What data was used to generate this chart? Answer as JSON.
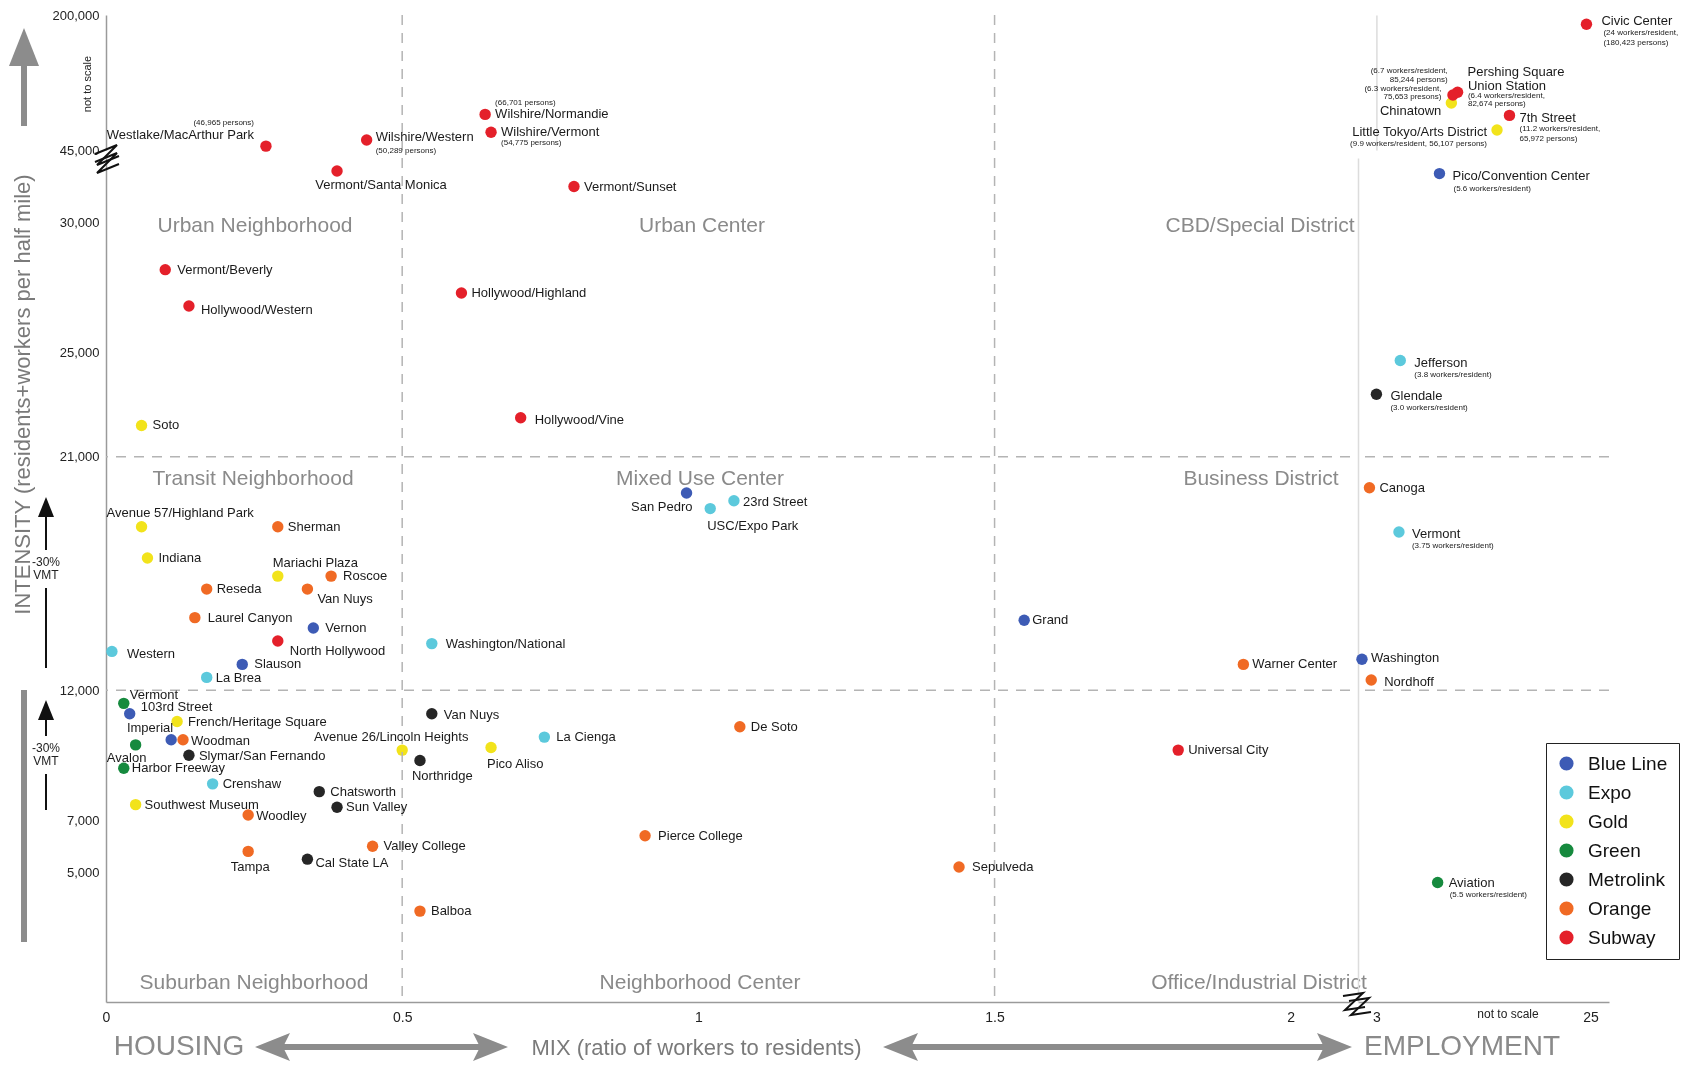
{
  "chart_data": [
    {
      "type": "scatter",
      "xlim": [
        0,
        2
      ],
      "xticks": [
        0,
        0.5,
        1,
        1.5,
        2
      ],
      "ylim": [
        45000,
        200000
      ],
      "yticks": [
        {
          "value": 45000,
          "label": "45,000"
        },
        {
          "value": 200000,
          "label": "200,000"
        }
      ],
      "log": "y",
      "tick_labels": "y",
      "marker": "circle",
      "series": [
        {
          "color": "#e4202a",
          "x": [
            0.64,
            0.65,
            0.44,
            0.27
          ],
          "values": [
            66701,
            54775,
            50289,
            46965
          ]
        }
      ],
      "ref_lines": [
        {
          "axis": "x",
          "value": 0.5,
          "line_style": "dashed",
          "color": "#b4b4b4"
        },
        {
          "axis": "x",
          "value": 1.5,
          "line_style": "dashed",
          "color": "#b4b4b4"
        }
      ],
      "annotations": [
        {
          "text": "Wilshire/Normandie",
          "x": 0.64,
          "y": 66701
        },
        {
          "text": "(66,701 persons)",
          "x": 0.64,
          "y": 66701
        },
        {
          "text": "Wilshire/Vermont",
          "x": 0.65,
          "y": 54775
        },
        {
          "text": "(54,775 persons)",
          "x": 0.65,
          "y": 54775
        },
        {
          "text": "Wilshire/Western",
          "x": 0.44,
          "y": 50289
        },
        {
          "text": "(50,289 persons)",
          "x": 0.44,
          "y": 50289
        },
        {
          "text": "Westlake/MacArthur Park",
          "x": 0.27,
          "y": 46965
        },
        {
          "text": "(46,965 persons)",
          "x": 0.27,
          "y": 46965
        },
        "not to scale"
      ]
    },
    {
      "type": "scatter",
      "xlim": [
        3,
        25
      ],
      "xticks": [
        3,
        25
      ],
      "ylim": [
        45000,
        200000
      ],
      "log": "xy",
      "tick_labels": false,
      "marker": "circle",
      "series": [
        {
          "color": "#f2e31b",
          "x": [
            6.3,
            9.9
          ],
          "values": [
            75653,
            56107
          ]
        },
        {
          "color": "#e4202a",
          "x": [
            24,
            6.7,
            6.4,
            11.2
          ],
          "values": [
            180423,
            85244,
            82674,
            65972
          ]
        }
      ],
      "annotations": [
        {
          "text": "Chinatown",
          "x": 6.3,
          "y": 75653
        },
        {
          "text": "(6.3 workers/resident,",
          "x": 6.3,
          "y": 75653
        },
        {
          "text": "75,653 presons)",
          "x": 6.3,
          "y": 75653
        },
        {
          "text": "Little Tokyo/Arts District",
          "x": 9.9,
          "y": 56107
        },
        {
          "text": "(9.9 workers/resident, 56,107 persons)",
          "x": 9.9,
          "y": 56107
        },
        {
          "text": "Civic Center",
          "x": 24,
          "y": 180423
        },
        {
          "text": "(24 workers/resident,",
          "x": 24,
          "y": 180423
        },
        {
          "text": "(180,423 persons)",
          "x": 24,
          "y": 180423
        },
        {
          "text": "Pershing Square",
          "x": 6.7,
          "y": 85244
        },
        {
          "text": "(6.7 workers/resident,",
          "x": 6.7,
          "y": 85244
        },
        {
          "text": "85,244 persons)",
          "x": 6.7,
          "y": 85244
        },
        {
          "text": "Union Station",
          "x": 6.4,
          "y": 82674
        },
        {
          "text": "(6.4 workers/resident,",
          "x": 6.4,
          "y": 82674
        },
        {
          "text": "82,674 persons)",
          "x": 6.4,
          "y": 82674
        },
        {
          "text": "7th Street",
          "x": 11.2,
          "y": 65972
        },
        {
          "text": "(11.2 workers/resident,",
          "x": 11.2,
          "y": 65972
        },
        {
          "text": "65,972 persons)",
          "x": 11.2,
          "y": 65972
        }
      ]
    },
    {
      "type": "scatter",
      "xlabel": "MIX (ratio of workers to residents)",
      "ylabel": "INTENSITY (residents+workers per half mile)",
      "xlim": [
        0,
        2.1
      ],
      "xticks": [
        0,
        0.5,
        1,
        1.5,
        2
      ],
      "ylim": [
        0,
        32500
      ],
      "yticks": [
        {
          "value": 5000,
          "label": "5,000"
        },
        {
          "value": 7000,
          "label": "7,000"
        },
        {
          "value": 12000,
          "label": "12,000"
        },
        {
          "value": 21000,
          "label": "21,000"
        },
        {
          "value": 25000,
          "label": "25,000"
        },
        {
          "value": 30000,
          "label": "30,000"
        }
      ],
      "legend": "bottom right",
      "marker": "circle",
      "series": [
        {
          "name": "Blue Line",
          "color": "#3d5bb5",
          "x": [
            0.98,
            1.55,
            0.35,
            0.23,
            0.04,
            0.11
          ],
          "values": [
            19600,
            14700,
            14400,
            13000,
            11100,
            10100
          ]
        },
        {
          "name": "Expo",
          "color": "#5cc9dc",
          "x": [
            1.06,
            1.02,
            0.55,
            0.01,
            0.17,
            0.74,
            0.18
          ],
          "values": [
            19300,
            19000,
            13800,
            13500,
            12500,
            10200,
            8400
          ]
        },
        {
          "name": "Gold",
          "color": "#f2e31b",
          "x": [
            0.06,
            0.06,
            0.07,
            0.29,
            0.12,
            0.5,
            0.65,
            0.05
          ],
          "values": [
            22200,
            18300,
            17100,
            16400,
            10800,
            9700,
            9800,
            7600
          ]
        },
        {
          "name": "Green",
          "color": "#168a3e",
          "x": [
            0.03,
            0.05,
            0.03
          ],
          "values": [
            11500,
            9900,
            9000
          ]
        },
        {
          "name": "Metrolink",
          "color": "#262626",
          "x": [
            0.55,
            0.53,
            0.14,
            0.36,
            0.39,
            0.34
          ],
          "values": [
            11100,
            9300,
            9500,
            8100,
            7500,
            5500
          ]
        },
        {
          "name": "Orange",
          "color": "#f06a24",
          "x": [
            0.29,
            0.17,
            0.38,
            0.34,
            0.15,
            0.13,
            0.24,
            0.24,
            0.45,
            0.53,
            0.91,
            1.07,
            1.44,
            1.92
          ],
          "values": [
            18300,
            15900,
            16400,
            15900,
            14800,
            10100,
            7200,
            5800,
            6000,
            3500,
            6400,
            10600,
            5200,
            13000
          ]
        },
        {
          "name": "Subway",
          "color": "#e4202a",
          "x": [
            0.39,
            0.79,
            0.1,
            0.14,
            0.6,
            0.7,
            1.81,
            0.29
          ],
          "values": [
            32000,
            31400,
            28200,
            26800,
            27300,
            22500,
            9700,
            13900
          ]
        }
      ],
      "ref_lines": [
        {
          "axis": "x",
          "value": 0.5,
          "line_style": "dashed",
          "color": "#b4b4b4"
        },
        {
          "axis": "x",
          "value": 1.5,
          "line_style": "dashed",
          "color": "#b4b4b4"
        },
        {
          "axis": "y",
          "value": 12000,
          "line_style": "dashed",
          "color": "#b4b4b4"
        },
        {
          "axis": "y",
          "value": 21000,
          "line_style": "dashed",
          "color": "#b4b4b4"
        }
      ],
      "annotations": [
        {
          "text": "San Pedro",
          "x": 0.98,
          "y": 19600
        },
        {
          "text": "Grand",
          "x": 1.55,
          "y": 14700
        },
        {
          "text": "Vernon",
          "x": 0.35,
          "y": 14400
        },
        {
          "text": "Slauson",
          "x": 0.23,
          "y": 13000
        },
        {
          "text": "103rd Street",
          "x": 0.04,
          "y": 11100
        },
        {
          "text": "Imperial",
          "x": 0.11,
          "y": 10100
        },
        {
          "text": "23rd Street",
          "x": 1.06,
          "y": 19300
        },
        {
          "text": "USC/Expo Park",
          "x": 1.02,
          "y": 19000
        },
        {
          "text": "Washington/National",
          "x": 0.55,
          "y": 13800
        },
        {
          "text": "Western",
          "x": 0.01,
          "y": 13500
        },
        {
          "text": "La Brea",
          "x": 0.17,
          "y": 12500
        },
        {
          "text": "La Cienga",
          "x": 0.74,
          "y": 10200
        },
        {
          "text": "Crenshaw",
          "x": 0.18,
          "y": 8400
        },
        {
          "text": "Soto",
          "x": 0.06,
          "y": 22200
        },
        {
          "text": "Avenue 57/Highland Park",
          "x": 0.06,
          "y": 18300
        },
        {
          "text": "Indiana",
          "x": 0.07,
          "y": 17100
        },
        {
          "text": "Mariachi Plaza",
          "x": 0.29,
          "y": 16400
        },
        {
          "text": "French/Heritage Square",
          "x": 0.12,
          "y": 10800
        },
        {
          "text": "Avenue 26/Lincoln Heights",
          "x": 0.5,
          "y": 9700
        },
        {
          "text": "Pico Aliso",
          "x": 0.65,
          "y": 9800
        },
        {
          "text": "Southwest Museum",
          "x": 0.05,
          "y": 7600
        },
        {
          "text": "Vermont",
          "x": 0.03,
          "y": 11500
        },
        {
          "text": "Avalon",
          "x": 0.05,
          "y": 9900
        },
        {
          "text": "Harbor Freeway",
          "x": 0.03,
          "y": 9000
        },
        {
          "text": "Van Nuys",
          "x": 0.55,
          "y": 11100
        },
        {
          "text": "Northridge",
          "x": 0.53,
          "y": 9300
        },
        {
          "text": "Slymar/San Fernando",
          "x": 0.14,
          "y": 9500
        },
        {
          "text": "Chatsworth",
          "x": 0.36,
          "y": 8100
        },
        {
          "text": "Sun Valley",
          "x": 0.39,
          "y": 7500
        },
        {
          "text": "Cal State LA",
          "x": 0.34,
          "y": 5500
        },
        {
          "text": "Sherman",
          "x": 0.29,
          "y": 18300
        },
        {
          "text": "Reseda",
          "x": 0.17,
          "y": 15900
        },
        {
          "text": "Roscoe",
          "x": 0.38,
          "y": 16400
        },
        {
          "text": "Van Nuys",
          "x": 0.34,
          "y": 15900
        },
        {
          "text": "Laurel Canyon",
          "x": 0.15,
          "y": 14800
        },
        {
          "text": "Woodman",
          "x": 0.13,
          "y": 10100
        },
        {
          "text": "Woodley",
          "x": 0.24,
          "y": 7200
        },
        {
          "text": "Tampa",
          "x": 0.24,
          "y": 5800
        },
        {
          "text": "Valley College",
          "x": 0.45,
          "y": 6000
        },
        {
          "text": "Balboa",
          "x": 0.53,
          "y": 3500
        },
        {
          "text": "Pierce College",
          "x": 0.91,
          "y": 6400
        },
        {
          "text": "De Soto",
          "x": 1.07,
          "y": 10600
        },
        {
          "text": "Sepulveda",
          "x": 1.44,
          "y": 5200
        },
        {
          "text": "Warner Center",
          "x": 1.92,
          "y": 13000
        },
        {
          "text": "Vermont/Santa Monica",
          "x": 0.39,
          "y": 32000
        },
        {
          "text": "Vermont/Sunset",
          "x": 0.79,
          "y": 31400
        },
        {
          "text": "Vermont/Beverly",
          "x": 0.1,
          "y": 28200
        },
        {
          "text": "Hollywood/Western",
          "x": 0.14,
          "y": 26800
        },
        {
          "text": "Hollywood/Highland",
          "x": 0.6,
          "y": 27300
        },
        {
          "text": "Hollywood/Vine",
          "x": 0.7,
          "y": 22500
        },
        {
          "text": "Universal City",
          "x": 1.81,
          "y": 9700
        },
        {
          "text": "North Hollywood",
          "x": 0.29,
          "y": 13900
        },
        "Urban Neighborhood",
        "Urban Center",
        "CBD/Special District",
        "Transit Neighborhood",
        "Mixed Use Center",
        "Business District",
        "Suburban Neighborhood",
        "Neighborhood Center",
        "Office/Industrial District",
        "-30%\nVMT",
        "-30%\nVMT",
        "HOUSING",
        "EMPLOYMENT"
      ]
    },
    {
      "type": "scatter",
      "xlim": [
        2.5,
        30
      ],
      "xticks": [
        3,
        25
      ],
      "ylim": [
        0,
        32500
      ],
      "log": "x",
      "tick_labels": "x",
      "marker": "circle",
      "series": [
        {
          "color": "#3d5bb5",
          "x": [
            5.6,
            2.6
          ],
          "values": [
            31900,
            13200
          ]
        },
        {
          "color": "#5cc9dc",
          "x": [
            3.8,
            3.75
          ],
          "values": [
            24700,
            18100
          ]
        },
        {
          "color": "#168a3e",
          "x": [
            5.5
          ],
          "values": [
            4600
          ]
        },
        {
          "color": "#262626",
          "x": [
            3
          ],
          "values": [
            23400
          ]
        },
        {
          "color": "#f06a24",
          "x": [
            2.8,
            2.85
          ],
          "values": [
            19800,
            12400
          ]
        }
      ],
      "ref_lines": [
        {
          "axis": "y",
          "value": 12000,
          "line_style": "dashed",
          "color": "#b4b4b4"
        },
        {
          "axis": "y",
          "value": 21000,
          "line_style": "dashed",
          "color": "#b4b4b4"
        }
      ],
      "annotations": [
        {
          "text": "Pico/Convention Center",
          "x": 5.6,
          "y": 31900
        },
        {
          "text": "(5.6 workers/resident)",
          "x": 5.6,
          "y": 31900
        },
        {
          "text": "Washington",
          "x": 2.6,
          "y": 13200
        },
        {
          "text": "Jefferson",
          "x": 3.8,
          "y": 24700
        },
        {
          "text": "(3.8 workers/resident)",
          "x": 3.8,
          "y": 24700
        },
        {
          "text": "Vermont",
          "x": 3.75,
          "y": 18100
        },
        {
          "text": "(3.75 workers/resident)",
          "x": 3.75,
          "y": 18100
        },
        {
          "text": "Aviation",
          "x": 5.5,
          "y": 4600
        },
        {
          "text": "(5.5 workers/resident)",
          "x": 5.5,
          "y": 4600
        },
        {
          "text": "Glendale",
          "x": 3,
          "y": 23400
        },
        {
          "text": "(3.0 workers/resident)",
          "x": 3,
          "y": 23400
        },
        {
          "text": "Canoga",
          "x": 2.8,
          "y": 19800
        },
        {
          "text": "Nordhoff",
          "x": 2.85,
          "y": 12400
        },
        "not to scale"
      ]
    }
  ]
}
